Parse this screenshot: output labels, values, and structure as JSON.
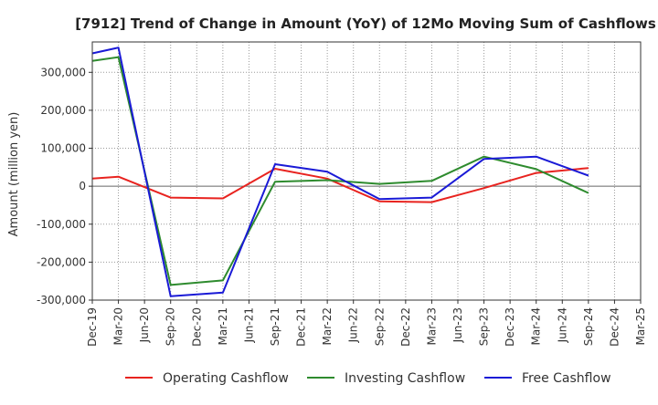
{
  "chart_data": {
    "type": "line",
    "title": "[7912]  Trend of Change in Amount (YoY) of 12Mo Moving Sum of Cashflows",
    "xlabel": "",
    "ylabel": "Amount (million yen)",
    "ylim": [
      -300000,
      380000
    ],
    "yticks": [
      -300000,
      -200000,
      -100000,
      0,
      100000,
      200000,
      300000
    ],
    "ytick_labels": [
      "-300,000",
      "-200,000",
      "-100,000",
      "0",
      "100,000",
      "200,000",
      "300,000"
    ],
    "categories": [
      "Dec-19",
      "Mar-20",
      "Jun-20",
      "Sep-20",
      "Dec-20",
      "Mar-21",
      "Jun-21",
      "Sep-21",
      "Dec-21",
      "Mar-22",
      "Jun-22",
      "Sep-22",
      "Dec-22",
      "Mar-23",
      "Jun-23",
      "Sep-23",
      "Dec-23",
      "Mar-24",
      "Jun-24",
      "Sep-24",
      "Dec-24",
      "Mar-25"
    ],
    "grid": true,
    "legend_position": "bottom",
    "series": [
      {
        "name": "Operating Cashflow",
        "color": "#e8231f",
        "values": [
          20000,
          25000,
          null,
          -30000,
          null,
          -32000,
          null,
          46000,
          null,
          20000,
          null,
          -40000,
          null,
          -42000,
          null,
          -5000,
          null,
          35000,
          null,
          48000,
          null,
          null
        ]
      },
      {
        "name": "Investing Cashflow",
        "color": "#2e8b2e",
        "values": [
          330000,
          340000,
          null,
          -260000,
          null,
          -248000,
          null,
          12000,
          null,
          16000,
          null,
          6000,
          null,
          14000,
          null,
          78000,
          null,
          45000,
          null,
          -18000,
          null,
          null
        ]
      },
      {
        "name": "Free Cashflow",
        "color": "#1a1ad6",
        "values": [
          350000,
          365000,
          null,
          -290000,
          null,
          -280000,
          null,
          58000,
          null,
          38000,
          null,
          -34000,
          null,
          -30000,
          null,
          72000,
          null,
          78000,
          null,
          28000,
          null,
          null
        ]
      }
    ]
  }
}
